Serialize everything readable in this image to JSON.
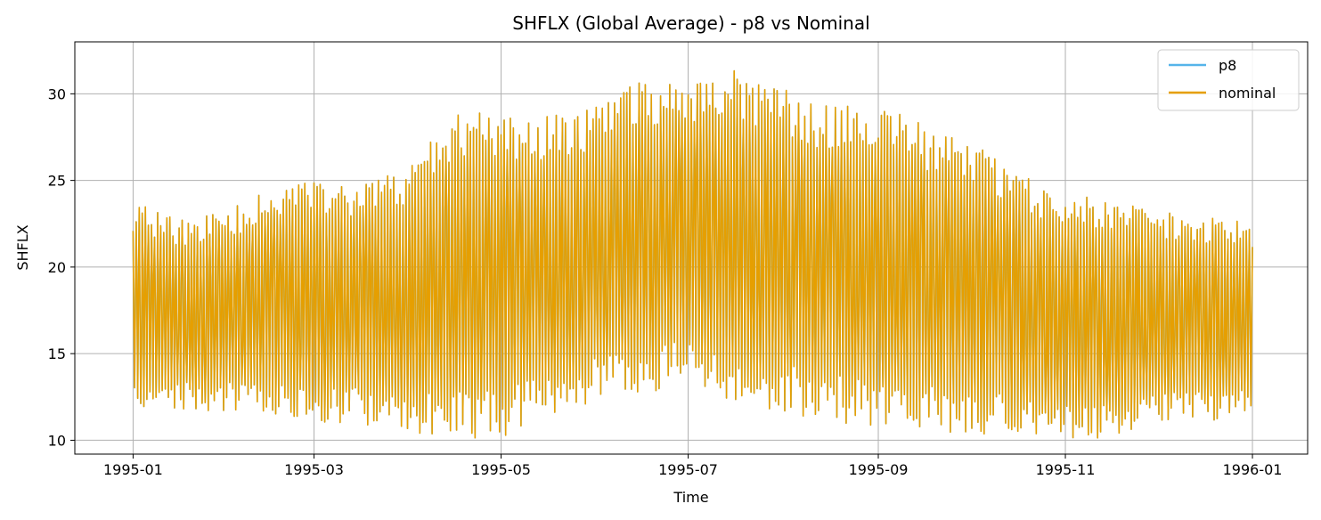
{
  "chart_data": {
    "type": "line",
    "title": "SHFLX (Global Average) - p8 vs Nominal",
    "xlabel": "Time",
    "ylabel": "SHFLX",
    "grid": true,
    "legend_position": "top-right",
    "xlim": [
      "1994-12-13",
      "1996-01-19"
    ],
    "ylim": [
      9.2,
      33.0
    ],
    "x_ticks": [
      "1995-01",
      "1995-03",
      "1995-05",
      "1995-07",
      "1995-09",
      "1995-11",
      "1996-01"
    ],
    "y_ticks": [
      10,
      15,
      20,
      25,
      30
    ],
    "sampling": "hourly over 1995 (diurnal cycle); values below are daily max/min envelope",
    "envelope": {
      "dates": [
        "1995-01-01",
        "1995-01-15",
        "1995-02-01",
        "1995-02-15",
        "1995-03-01",
        "1995-03-15",
        "1995-04-01",
        "1995-04-15",
        "1995-05-01",
        "1995-05-15",
        "1995-06-01",
        "1995-06-15",
        "1995-07-01",
        "1995-07-15",
        "1995-08-01",
        "1995-08-15",
        "1995-09-01",
        "1995-09-15",
        "1995-10-01",
        "1995-10-15",
        "1995-11-01",
        "1995-11-15",
        "1995-12-01",
        "1995-12-15",
        "1996-01-01"
      ],
      "upper": [
        23.0,
        22.0,
        22.5,
        23.5,
        24.0,
        24.0,
        24.5,
        27.5,
        27.5,
        27.5,
        28.0,
        29.5,
        29.5,
        30.0,
        29.0,
        28.0,
        28.0,
        27.0,
        26.0,
        24.5,
        23.0,
        23.0,
        22.5,
        22.0,
        22.0
      ],
      "lower": [
        12.5,
        12.5,
        12.5,
        12.5,
        12.0,
        12.0,
        11.5,
        11.5,
        11.5,
        12.5,
        13.5,
        14.0,
        14.5,
        13.5,
        13.0,
        12.5,
        12.0,
        12.0,
        11.5,
        11.5,
        11.0,
        11.0,
        12.0,
        12.0,
        12.0
      ]
    },
    "series": [
      {
        "name": "p8",
        "color": "#56b4e9"
      },
      {
        "name": "nominal",
        "color": "#e69f00"
      }
    ]
  }
}
